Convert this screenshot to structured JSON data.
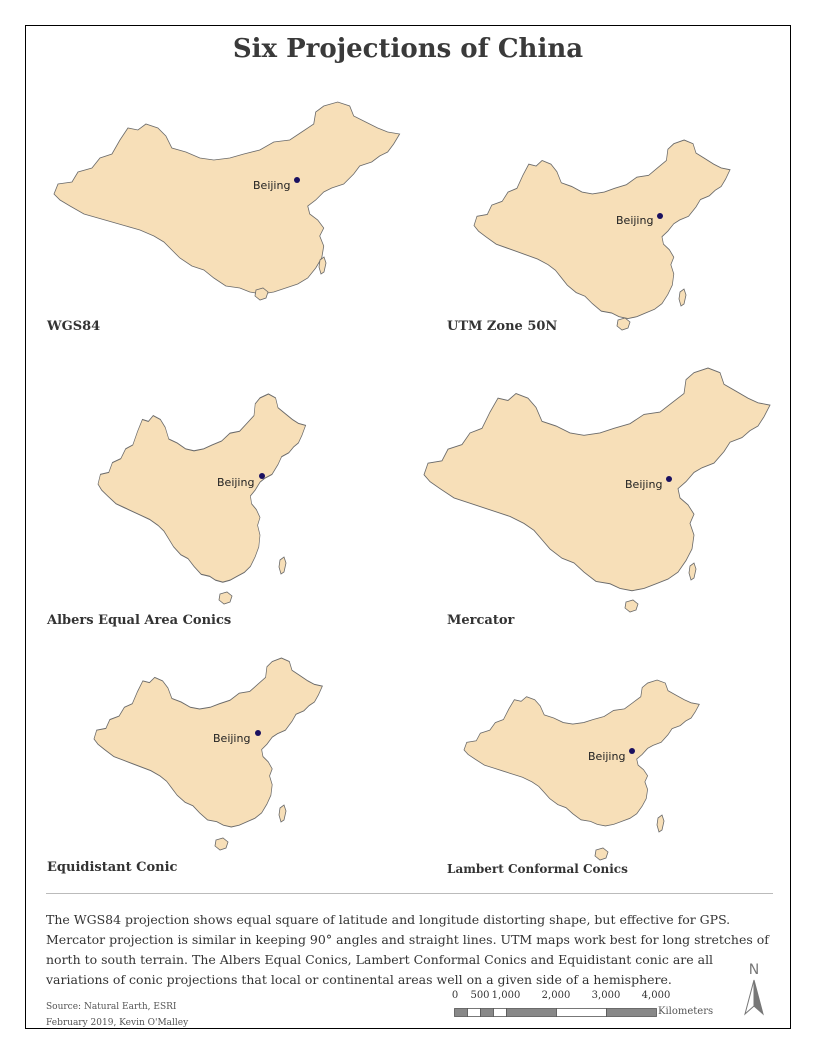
{
  "title": "Six Projections of China",
  "maps": [
    {
      "label": "WGS84",
      "city": "Beijing"
    },
    {
      "label": "UTM Zone 50N",
      "city": "Beijing"
    },
    {
      "label": "Albers Equal Area Conics",
      "city": "Beijing"
    },
    {
      "label": "Mercator",
      "city": "Beijing"
    },
    {
      "label": "Equidistant Conic",
      "city": "Beijing"
    },
    {
      "label": "Lambert Conformal Conics",
      "city": "Beijing"
    }
  ],
  "description": "The WGS84 projection shows equal square of latitude and longitude distorting shape, but effective for GPS. Mercator projection is similar in keeping 90° angles and straight lines. UTM maps work best for long stretches of north to south terrain. The Albers Equal Conics, Lambert Conformal Conics and Equidistant conic are all variations of conic projections that local or continental areas well on a given side of a hemisphere.",
  "credit": {
    "source": "Source: Natural Earth, ESRI",
    "author": "February 2019, Kevin O'Malley"
  },
  "scale": {
    "ticks": [
      "0",
      "500",
      "1,000",
      "2,000",
      "3,000",
      "4,000"
    ],
    "unit": "Kilometers"
  },
  "north": "N",
  "colors": {
    "land": "#f7dfb8",
    "outline": "#6a6a6a",
    "city_dot": "#1a1060"
  }
}
